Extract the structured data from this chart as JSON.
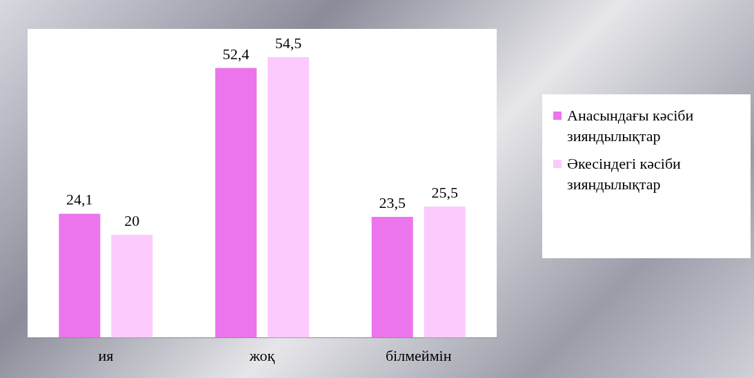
{
  "chart_data": {
    "type": "bar",
    "categories": [
      "ия",
      "жоқ",
      "білмеймін"
    ],
    "series": [
      {
        "name": "Анасындағы кәсіби зияндылықтар",
        "color": "#ec74ec",
        "values": [
          24.1,
          52.4,
          23.5
        ],
        "value_labels": [
          "24,1",
          "52,4",
          "23,5"
        ]
      },
      {
        "name": "Әкесіндегі кәсіби зияндылықтар",
        "color": "#fccafc",
        "values": [
          20,
          54.5,
          25.5
        ],
        "value_labels": [
          "20",
          "54,5",
          "25,5"
        ]
      }
    ],
    "ylim": [
      0,
      60
    ],
    "tick_labels": "x",
    "legend": "right"
  }
}
